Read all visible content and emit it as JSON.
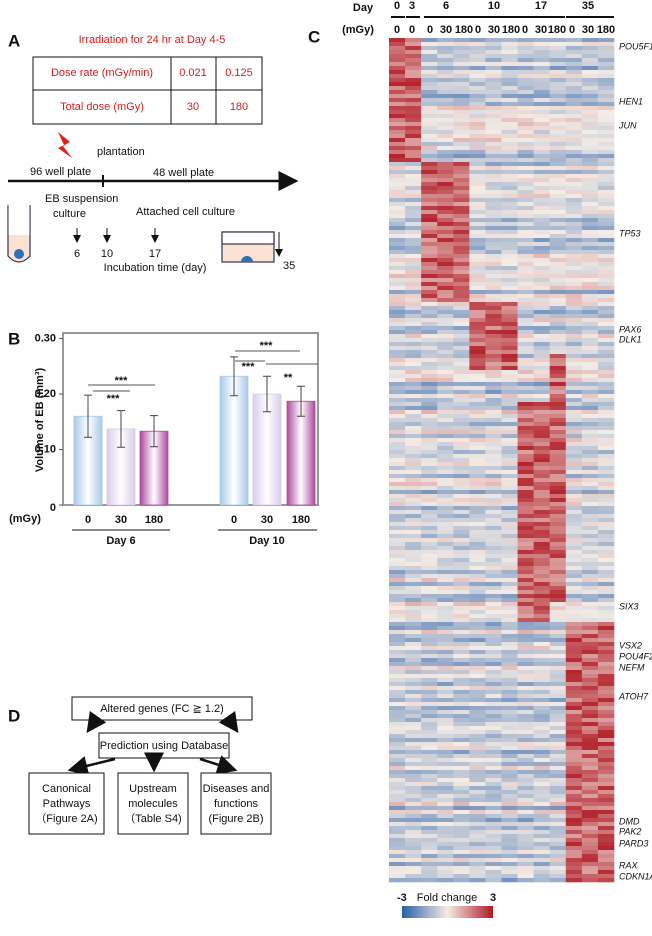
{
  "panel_a": {
    "label": "A",
    "title": "Irradiation for 24 hr at Day 4-5",
    "table": {
      "rows": [
        [
          "Dose rate (mGy/min)",
          "0.021",
          "0.125"
        ],
        [
          "Total dose (mGy)",
          "30",
          "180"
        ]
      ]
    },
    "plantation": "plantation",
    "plate_1": "96 well plate",
    "plate_2": "48 well plate",
    "culture_1": [
      "EB suspension",
      "culture"
    ],
    "culture_2": "Attached cell culture",
    "days": [
      "6",
      "10",
      "17",
      "35"
    ],
    "axis_label": "Incubation time (day)"
  },
  "chart_data": {
    "type": "bar",
    "label": "B",
    "ylabel": "Volume of EB (mm³)",
    "xlabel": "(mGy)",
    "categories": [
      "0",
      "30",
      "180",
      "0",
      "30",
      "180"
    ],
    "groups": [
      "Day 6",
      "Day 10"
    ],
    "values": [
      0.16,
      0.137,
      0.133,
      0.232,
      0.2,
      0.187
    ],
    "errors": [
      0.038,
      0.033,
      0.028,
      0.035,
      0.032,
      0.027
    ],
    "colors": [
      "#a9c9ea",
      "#d9cdea",
      "#b04a9f",
      "#a9c9ea",
      "#d9cdea",
      "#b04a9f"
    ],
    "ylim": [
      0,
      0.31
    ],
    "yticks": [
      0,
      {
        "value": 0.1,
        "label": "0.10"
      },
      {
        "value": 0.2,
        "label": "0.20"
      },
      {
        "value": 0.3,
        "label": "0.30"
      }
    ],
    "annotations": [
      "***",
      "***",
      "***",
      "***",
      "**"
    ]
  },
  "panel_c": {
    "label": "C",
    "day_label": "Day",
    "dose_label": "(mGy)",
    "days": [
      "0",
      "3",
      "6",
      "10",
      "17",
      "35"
    ],
    "doses": [
      [
        "0"
      ],
      [
        "0"
      ],
      [
        "0",
        "30",
        "180"
      ],
      [
        "0",
        "30",
        "180"
      ],
      [
        "0",
        "30",
        "180"
      ],
      [
        "0",
        "30",
        "180"
      ]
    ],
    "genes": [
      "POU5F1",
      "HEN1",
      "JUN",
      "TP53",
      "PAX6",
      "DLK1",
      "SIX3",
      "VSX2",
      "POU4F2",
      "NEFM",
      "ATOH7",
      "DMD",
      "PAK2",
      "PARD3",
      "RAX",
      "CDKN1A"
    ],
    "legend": {
      "min": "-3",
      "label": "Fold change",
      "max": "3"
    }
  },
  "panel_d": {
    "label": "D",
    "top": "Altered genes (FC ≧ 1.2)",
    "middle": "Prediction using Database",
    "boxes": [
      [
        "Canonical",
        "Pathways",
        "（Figure 2A)"
      ],
      [
        "Upstream",
        "molecules",
        "（Table S4)"
      ],
      [
        "Diseases and",
        "functions",
        "(Figure 2B)"
      ]
    ]
  }
}
